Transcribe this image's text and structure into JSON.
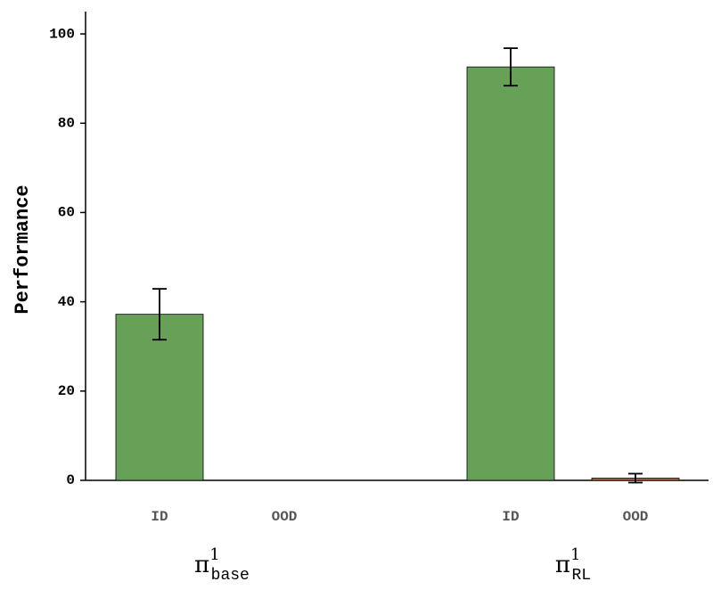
{
  "chart_data": {
    "type": "bar",
    "ylabel": "Performance",
    "categories": [
      {
        "main": "π",
        "sup": "1",
        "sub": "base"
      },
      {
        "main": "π",
        "sup": "1",
        "sub": "RL"
      }
    ],
    "series": [
      {
        "name": "ID",
        "color": "#67a057",
        "values": [
          37.2,
          92.6
        ],
        "errors": [
          5.7,
          4.2
        ]
      },
      {
        "name": "OOD",
        "color": "#c4643f",
        "values": [
          0,
          0.5
        ],
        "errors": [
          null,
          1.0
        ]
      }
    ],
    "ylim": [
      0,
      105
    ],
    "yticks": [
      0,
      20,
      40,
      60,
      80,
      100
    ],
    "grid": false
  }
}
